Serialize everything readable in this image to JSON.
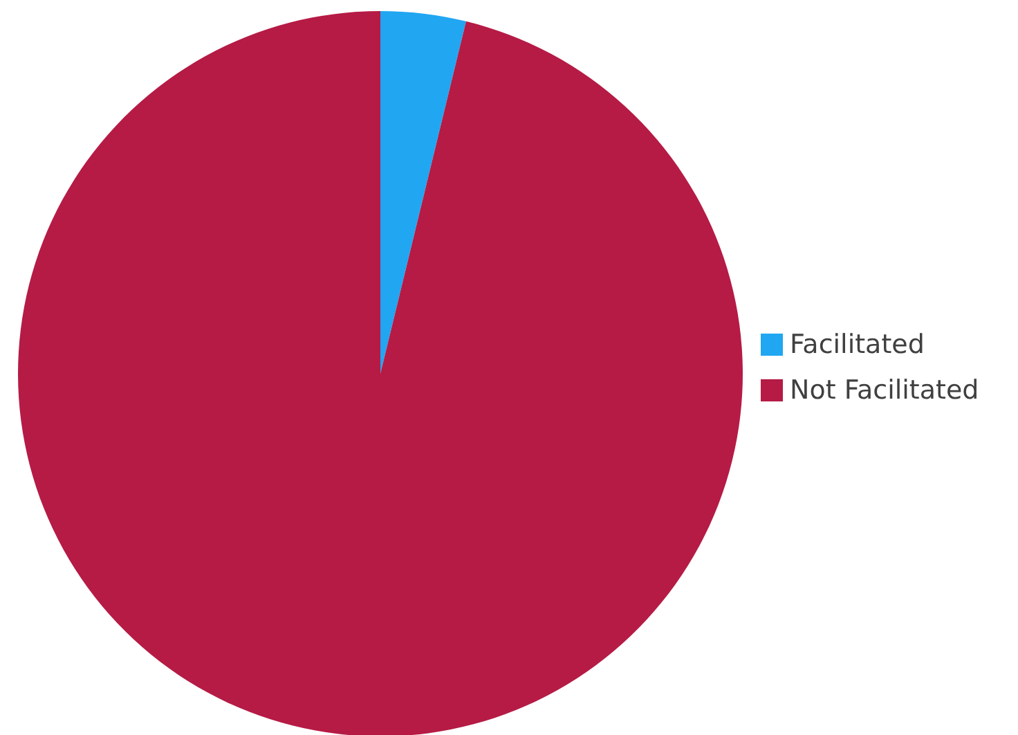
{
  "chart_data": {
    "type": "pie",
    "categories": [
      "Facilitated",
      "Not Facilitated"
    ],
    "values": [
      3.8,
      96.2
    ],
    "colors": [
      "#21a6f2",
      "#b51b45"
    ],
    "legend": "right"
  }
}
